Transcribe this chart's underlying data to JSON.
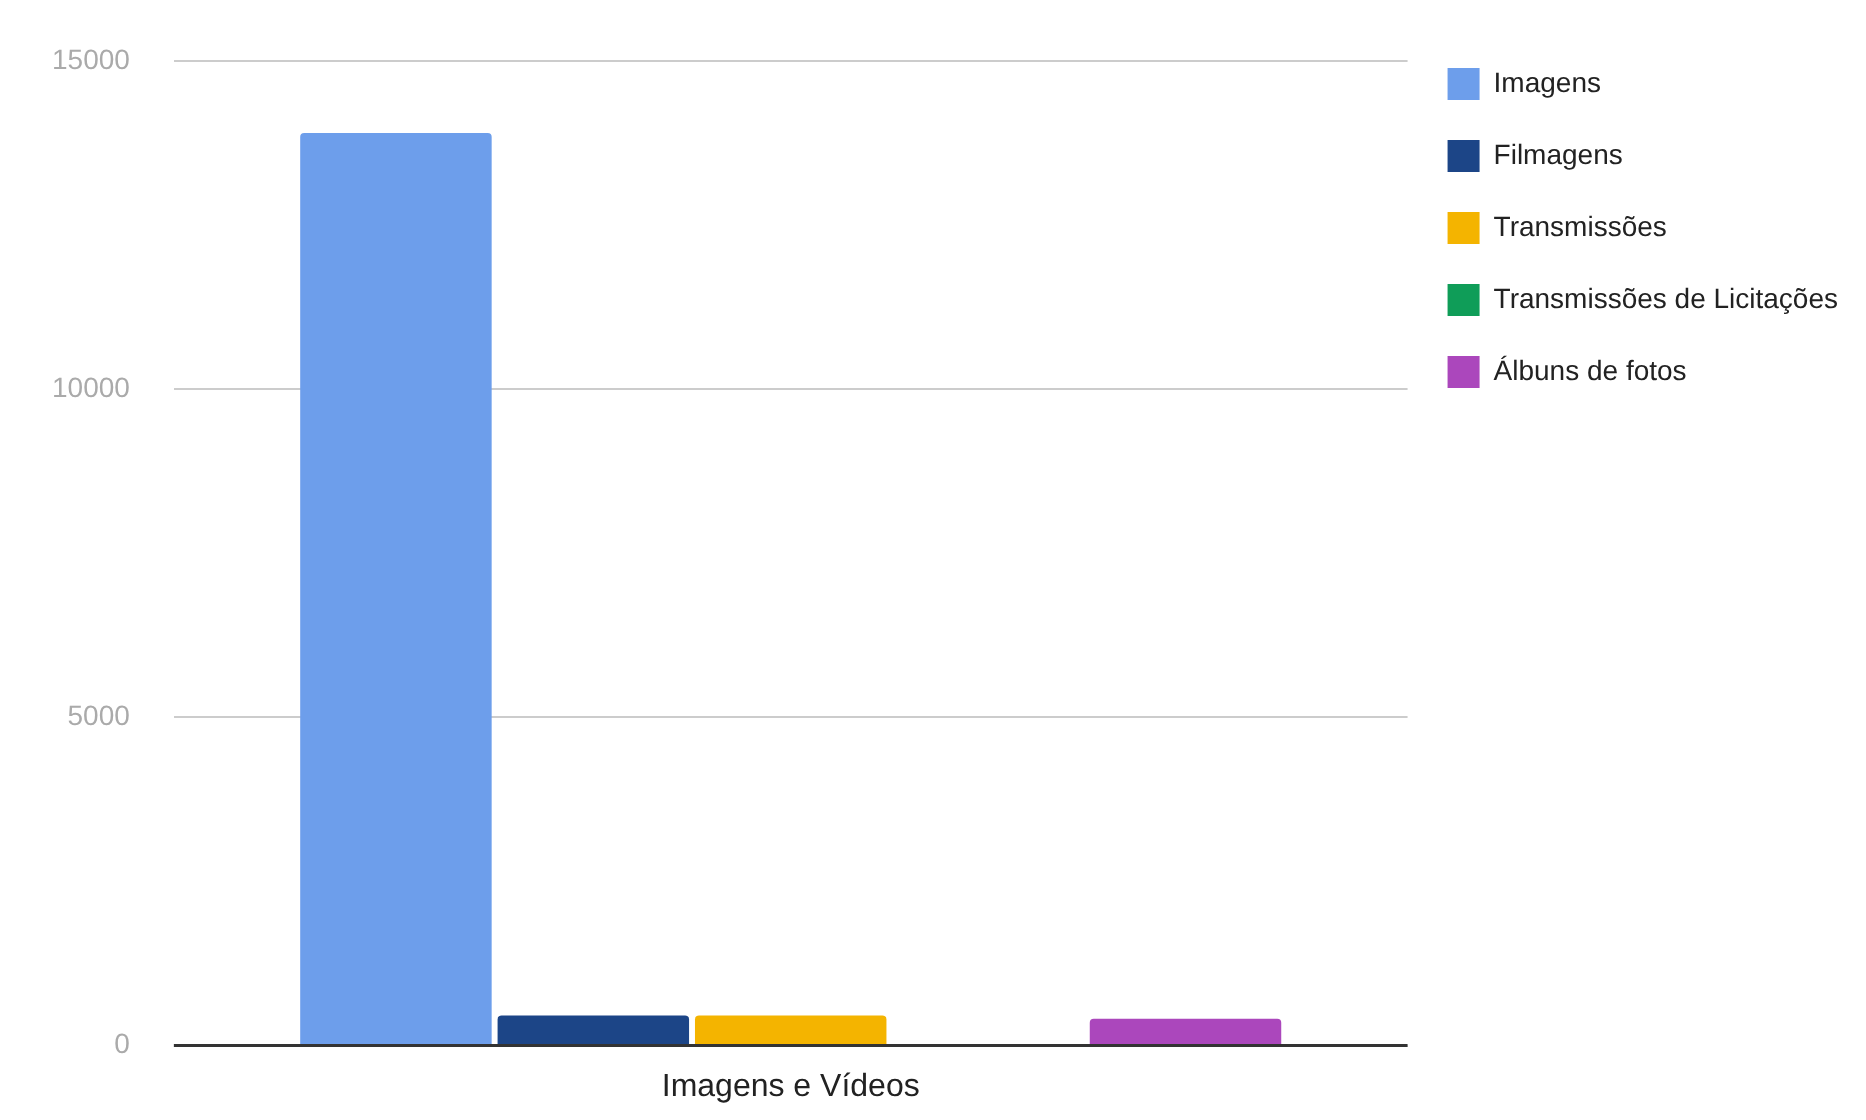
{
  "chart_data": {
    "type": "bar",
    "categories": [
      "Imagens e Vídeos"
    ],
    "series": [
      {
        "name": "Imagens",
        "color": "#6d9eeb",
        "values": [
          13900
        ]
      },
      {
        "name": "Filmagens",
        "color": "#1c4587",
        "values": [
          460
        ]
      },
      {
        "name": "Transmissões",
        "color": "#f4b400",
        "values": [
          460
        ]
      },
      {
        "name": "Transmissões de Licitações",
        "color": "#0f9d58",
        "values": [
          0
        ]
      },
      {
        "name": "Álbuns de fotos",
        "color": "#ab47bc",
        "values": [
          410
        ]
      }
    ],
    "ylim": [
      0,
      15000
    ],
    "yticks": [
      0,
      5000,
      10000,
      15000
    ],
    "grid": "y",
    "legend": "right"
  }
}
